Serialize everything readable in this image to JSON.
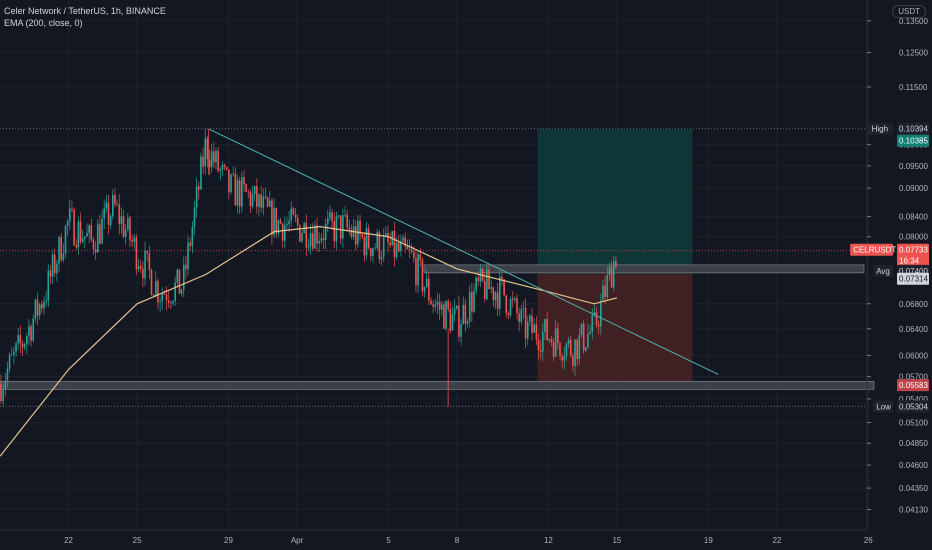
{
  "header": {
    "symbol_line": "Celer Network / TetherUS, 1h, BINANCE",
    "indicator_line": "EMA (200, close, 0)",
    "currency_badge": "USDT"
  },
  "colors": {
    "background": "#131722",
    "grid": "#1e222d",
    "up": "#26a69a",
    "down": "#ef5350",
    "ema": "#e0c38c",
    "trendline": "#4db6ac",
    "target_zone": "#0f3b3a",
    "stop_zone": "#4a2225",
    "zone_bar": "#3d4048",
    "axis_text": "#b2b5be"
  },
  "chart_data": {
    "type": "candlestick",
    "x_ticks": [
      "22",
      "25",
      "29",
      "Apr",
      "5",
      "8",
      "12",
      "15",
      "19",
      "22",
      "26"
    ],
    "y_ticks": [
      "0.13500",
      "0.12500",
      "0.11500",
      "0.10000",
      "0.09500",
      "0.09000",
      "0.08400",
      "0.08000",
      "0.06800",
      "0.06400",
      "0.06000",
      "0.05700",
      "0.05400",
      "0.05100",
      "0.04850",
      "0.04600",
      "0.04350",
      "0.04130"
    ],
    "y_scale": "log",
    "y_range": [
      0.0393,
      0.142
    ],
    "labels": {
      "high_tag": "High",
      "high_value": "0.10394",
      "target_value": "0.10385",
      "symbol_tag": "CELRUSDT",
      "last_price": "0.07733",
      "countdown": "16:34",
      "avg_tag": "Avg",
      "avg_value": "0.07400",
      "entry_value": "0.07314",
      "stop_value": "0.05583",
      "low_tag": "Low",
      "low_value": "0.05304"
    },
    "levels": {
      "high": 0.10394,
      "target": 0.10385,
      "last": 0.07733,
      "avg": 0.074,
      "entry": 0.07314,
      "stop": 0.05583,
      "low": 0.05304
    },
    "trendline": [
      {
        "date": "Mar 28",
        "price": 0.1039
      },
      {
        "date": "Apr 19",
        "price": 0.0573
      }
    ],
    "zones": [
      {
        "name": "resistance",
        "level": 0.074
      },
      {
        "name": "support",
        "level": 0.0558
      }
    ],
    "path": [
      {
        "date": "Mar 19",
        "price": 0.056
      },
      {
        "date": "Mar 20",
        "price": 0.062
      },
      {
        "date": "Mar 21",
        "price": 0.07
      },
      {
        "date": "Mar 22",
        "price": 0.083
      },
      {
        "date": "Mar 23",
        "price": 0.079
      },
      {
        "date": "Mar 24",
        "price": 0.086
      },
      {
        "date": "Mar 25",
        "price": 0.077
      },
      {
        "date": "Mar 26",
        "price": 0.07
      },
      {
        "date": "Mar 27",
        "price": 0.071
      },
      {
        "date": "Mar 28",
        "price": 0.1
      },
      {
        "date": "Mar 29",
        "price": 0.09
      },
      {
        "date": "Mar 30",
        "price": 0.088
      },
      {
        "date": "Mar 31",
        "price": 0.083
      },
      {
        "date": "Apr 1",
        "price": 0.082
      },
      {
        "date": "Apr 2",
        "price": 0.081
      },
      {
        "date": "Apr 3",
        "price": 0.082
      },
      {
        "date": "Apr 4",
        "price": 0.079
      },
      {
        "date": "Apr 5",
        "price": 0.078
      },
      {
        "date": "Apr 6",
        "price": 0.076
      },
      {
        "date": "Apr 7",
        "price": 0.068
      },
      {
        "date": "Apr 8",
        "price": 0.065
      },
      {
        "date": "Apr 9",
        "price": 0.071
      },
      {
        "date": "Apr 10",
        "price": 0.07
      },
      {
        "date": "Apr 11",
        "price": 0.064
      },
      {
        "date": "Apr 12",
        "price": 0.063
      },
      {
        "date": "Apr 13",
        "price": 0.061
      },
      {
        "date": "Apr 14",
        "price": 0.064
      },
      {
        "date": "Apr 15",
        "price": 0.0773
      }
    ],
    "ema": [
      {
        "date": "Mar 19",
        "price": 0.047
      },
      {
        "date": "Mar 22",
        "price": 0.058
      },
      {
        "date": "Mar 25",
        "price": 0.068
      },
      {
        "date": "Mar 28",
        "price": 0.073
      },
      {
        "date": "Mar 31",
        "price": 0.081
      },
      {
        "date": "Apr 2",
        "price": 0.082
      },
      {
        "date": "Apr 5",
        "price": 0.08
      },
      {
        "date": "Apr 8",
        "price": 0.074
      },
      {
        "date": "Apr 12",
        "price": 0.07
      },
      {
        "date": "Apr 14",
        "price": 0.068
      },
      {
        "date": "Apr 15",
        "price": 0.069
      }
    ]
  }
}
